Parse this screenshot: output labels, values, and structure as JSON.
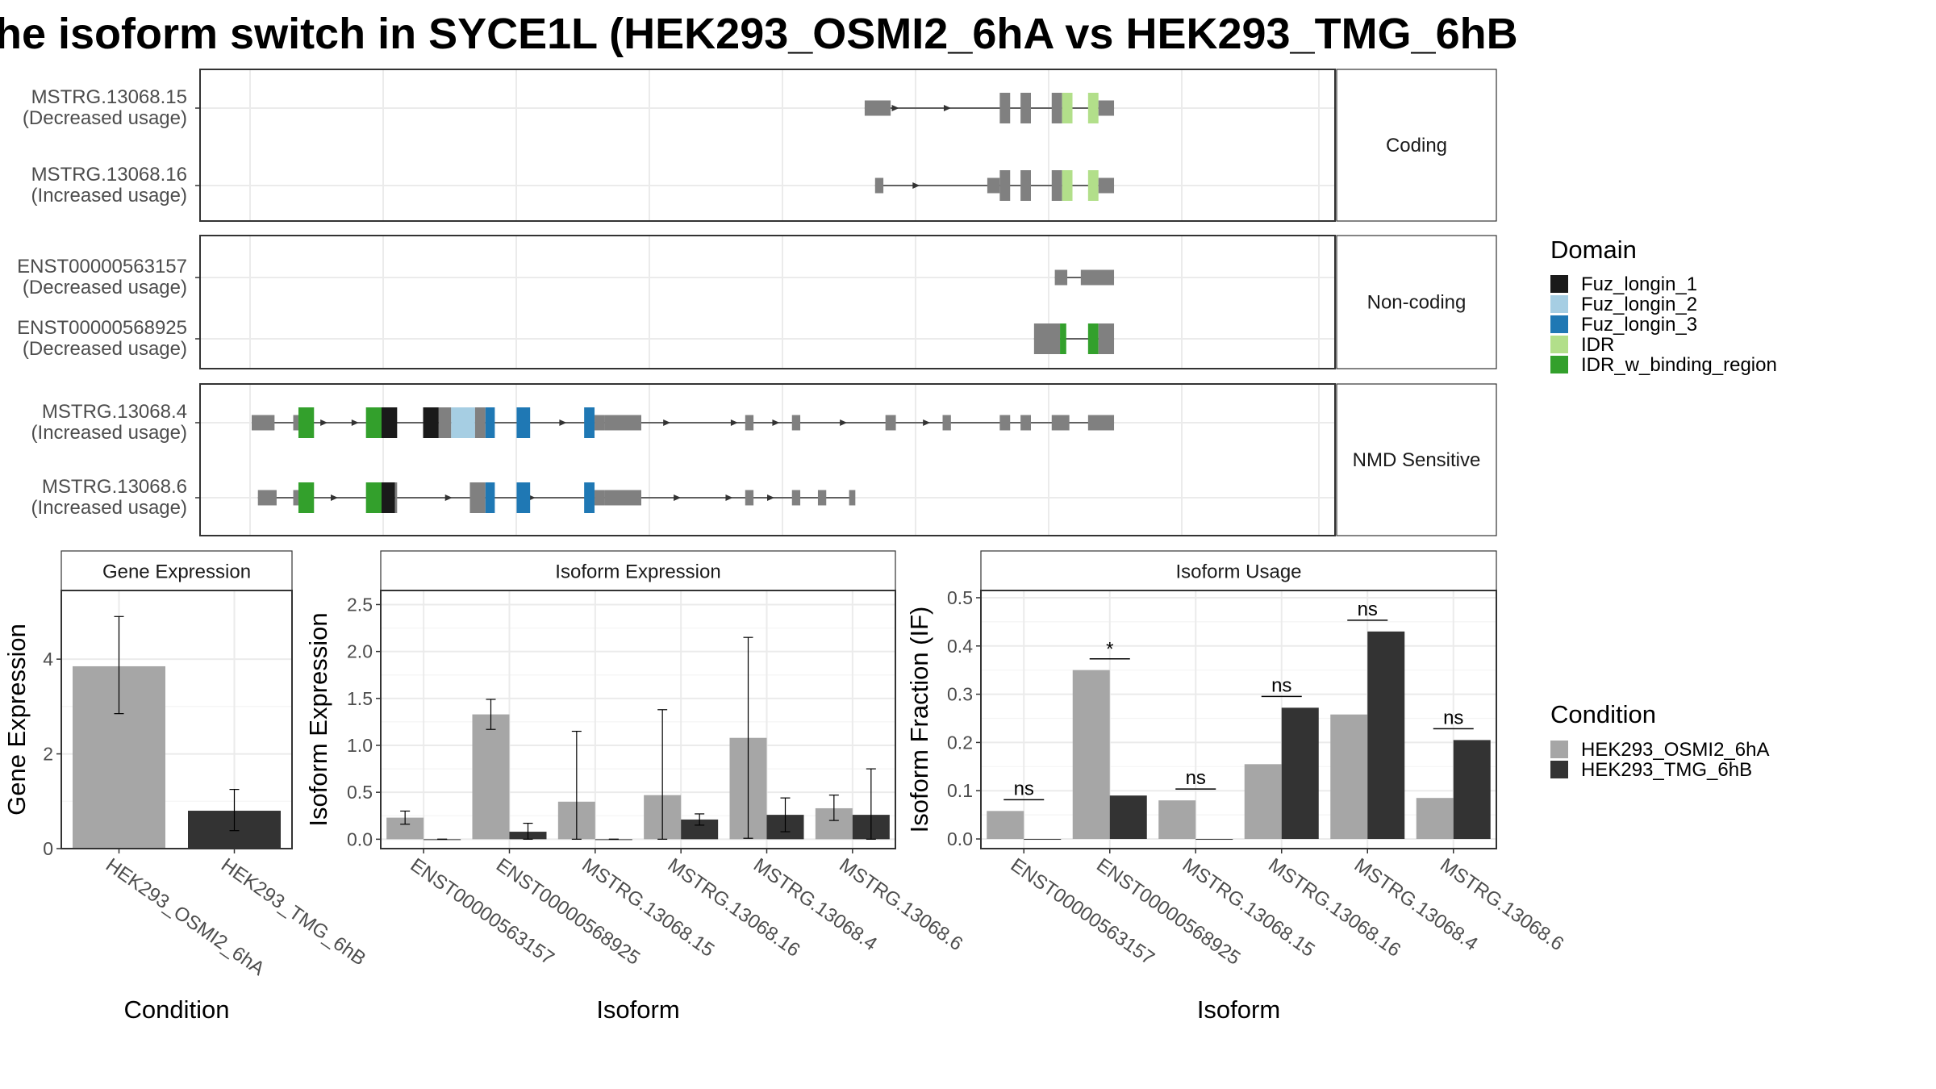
{
  "title": "he isoform switch in SYCE1L (HEK293_OSMI2_6hA vs HEK293_TMG_6hB",
  "colors": {
    "exon": "#808080",
    "Fuz_longin_1": "#1a1a1a",
    "Fuz_longin_2": "#a6cee3",
    "Fuz_longin_3": "#1f78b4",
    "IDR": "#b2df8a",
    "IDR_w_binding_region": "#33a02c",
    "cond_A": "#a6a6a6",
    "cond_B": "#333333"
  },
  "chart_data": [
    {
      "type": "gene-structure",
      "genome_range": [
        0,
        1000
      ],
      "facets": [
        {
          "label": "Coding",
          "transcripts": [
            {
              "id": "MSTRG.13068.15",
              "usage": "(Decreased usage)",
              "span": [
                590,
                830
              ],
              "arrows": [
                620,
                670
              ],
              "exons": [
                [
                  590,
                  615,
                  "n"
                ],
                [
                  720,
                  730,
                  "c"
                ],
                [
                  740,
                  750,
                  "c"
                ],
                [
                  770,
                  780,
                  "c"
                ],
                [
                  780,
                  790,
                  "c",
                  "IDR"
                ],
                [
                  805,
                  815,
                  "c",
                  "IDR"
                ],
                [
                  815,
                  830,
                  "n"
                ]
              ]
            },
            {
              "id": "MSTRG.13068.16",
              "usage": "(Increased usage)",
              "span": [
                600,
                830
              ],
              "arrows": [
                640
              ],
              "exons": [
                [
                  600,
                  608,
                  "n"
                ],
                [
                  708,
                  720,
                  "n"
                ],
                [
                  720,
                  730,
                  "c"
                ],
                [
                  740,
                  750,
                  "c"
                ],
                [
                  770,
                  780,
                  "c"
                ],
                [
                  780,
                  790,
                  "c",
                  "IDR"
                ],
                [
                  805,
                  815,
                  "c",
                  "IDR"
                ],
                [
                  815,
                  830,
                  "n"
                ]
              ]
            }
          ]
        },
        {
          "label": "Non-coding",
          "transcripts": [
            {
              "id": "ENST00000563157",
              "usage": "(Decreased usage)",
              "span": [
                773,
                830
              ],
              "arrows": [],
              "exons": [
                [
                  773,
                  785,
                  "n"
                ],
                [
                  798,
                  830,
                  "n"
                ]
              ]
            },
            {
              "id": "ENST00000568925",
              "usage": "(Decreased usage)",
              "span": [
                753,
                830
              ],
              "arrows": [],
              "exons": [
                [
                  753,
                  778,
                  "c"
                ],
                [
                  778,
                  784,
                  "c",
                  "IDR_w_binding_region"
                ],
                [
                  805,
                  815,
                  "c",
                  "IDR_w_binding_region"
                ],
                [
                  815,
                  830,
                  "c"
                ]
              ]
            }
          ]
        },
        {
          "label": "NMD Sensitive",
          "transcripts": [
            {
              "id": "MSTRG.13068.4",
              "usage": "(Increased usage)",
              "span": [
                0,
                830
              ],
              "arrows": [
                70,
                100,
                200,
                300,
                400,
                465,
                505,
                570,
                650
              ],
              "exons": [
                [
                  0,
                  22,
                  "n"
                ],
                [
                  40,
                  45,
                  "n"
                ],
                [
                  45,
                  60,
                  "c",
                  "IDR_w_binding_region"
                ],
                [
                  110,
                  125,
                  "c",
                  "IDR_w_binding_region"
                ],
                [
                  125,
                  140,
                  "c",
                  "Fuz_longin_1"
                ],
                [
                  165,
                  180,
                  "c",
                  "Fuz_longin_1"
                ],
                [
                  180,
                  192,
                  "c"
                ],
                [
                  192,
                  215,
                  "c",
                  "Fuz_longin_2"
                ],
                [
                  215,
                  225,
                  "c"
                ],
                [
                  225,
                  234,
                  "c",
                  "Fuz_longin_3"
                ],
                [
                  255,
                  268,
                  "c",
                  "Fuz_longin_3"
                ],
                [
                  320,
                  330,
                  "c",
                  "Fuz_longin_3"
                ],
                [
                  330,
                  340,
                  "n"
                ],
                [
                  340,
                  375,
                  "n"
                ],
                [
                  475,
                  483,
                  "n"
                ],
                [
                  520,
                  528,
                  "n"
                ],
                [
                  610,
                  620,
                  "n"
                ],
                [
                  665,
                  673,
                  "n"
                ],
                [
                  720,
                  730,
                  "n"
                ],
                [
                  740,
                  750,
                  "n"
                ],
                [
                  770,
                  787,
                  "n"
                ],
                [
                  805,
                  830,
                  "n"
                ]
              ]
            },
            {
              "id": "MSTRG.13068.6",
              "usage": "(Increased usage)",
              "span": [
                6,
                580
              ],
              "arrows": [
                80,
                190,
                270,
                410,
                460,
                500
              ],
              "exons": [
                [
                  6,
                  24,
                  "n"
                ],
                [
                  40,
                  45,
                  "n"
                ],
                [
                  45,
                  60,
                  "c",
                  "IDR_w_binding_region"
                ],
                [
                  110,
                  125,
                  "c",
                  "IDR_w_binding_region"
                ],
                [
                  125,
                  138,
                  "c",
                  "Fuz_longin_1"
                ],
                [
                  138,
                  140,
                  "c"
                ],
                [
                  210,
                  225,
                  "c"
                ],
                [
                  225,
                  234,
                  "c",
                  "Fuz_longin_3"
                ],
                [
                  255,
                  268,
                  "c",
                  "Fuz_longin_3"
                ],
                [
                  320,
                  330,
                  "c",
                  "Fuz_longin_3"
                ],
                [
                  330,
                  340,
                  "n"
                ],
                [
                  340,
                  375,
                  "n"
                ],
                [
                  475,
                  483,
                  "n"
                ],
                [
                  520,
                  528,
                  "n"
                ],
                [
                  545,
                  553,
                  "n"
                ],
                [
                  575,
                  581,
                  "n"
                ]
              ]
            }
          ]
        }
      ],
      "legend": {
        "title": "Domain",
        "items": [
          "Fuz_longin_1",
          "Fuz_longin_2",
          "Fuz_longin_3",
          "IDR",
          "IDR_w_binding_region"
        ]
      }
    },
    {
      "type": "bar",
      "title": "Gene Expression",
      "xlabel": "Condition",
      "ylabel": "Gene Expression",
      "ylim": [
        0,
        5.45
      ],
      "yticks": [
        0,
        2,
        4
      ],
      "categories": [
        "HEK293_OSMI2_6hA",
        "HEK293_TMG_6hB"
      ],
      "values": [
        3.85,
        0.8
      ],
      "errors": [
        [
          2.85,
          4.9
        ],
        [
          0.38,
          1.25
        ]
      ]
    },
    {
      "type": "bar",
      "title": "Isoform Expression",
      "xlabel": "Isoform",
      "ylabel": "Isoform Expression",
      "ylim": [
        -0.1,
        2.65
      ],
      "yticks": [
        0.0,
        0.5,
        1.0,
        1.5,
        2.0,
        2.5
      ],
      "categories": [
        "ENST00000563157",
        "ENST00000568925",
        "MSTRG.13068.15",
        "MSTRG.13068.16",
        "MSTRG.13068.4",
        "MSTRG.13068.6"
      ],
      "series": [
        {
          "name": "HEK293_OSMI2_6hA",
          "values": [
            0.23,
            1.33,
            0.4,
            0.47,
            1.08,
            0.33
          ],
          "errors": [
            [
              0.16,
              0.3
            ],
            [
              1.17,
              1.49
            ],
            [
              0.0,
              1.15
            ],
            [
              0.0,
              1.38
            ],
            [
              0.01,
              2.15
            ],
            [
              0.2,
              0.47
            ]
          ]
        },
        {
          "name": "HEK293_TMG_6hB",
          "values": [
            0.0,
            0.08,
            0.0,
            0.21,
            0.26,
            0.26
          ],
          "errors": [
            [
              0.0,
              0.0
            ],
            [
              0.0,
              0.17
            ],
            [
              0.0,
              0.0
            ],
            [
              0.15,
              0.27
            ],
            [
              0.08,
              0.44
            ],
            [
              0.0,
              0.75
            ]
          ]
        }
      ]
    },
    {
      "type": "bar",
      "title": "Isoform Usage",
      "xlabel": "Isoform",
      "ylabel": "Isoform Fraction (IF)",
      "ylim": [
        -0.02,
        0.515
      ],
      "yticks": [
        0.0,
        0.1,
        0.2,
        0.3,
        0.4,
        0.5
      ],
      "categories": [
        "ENST00000563157",
        "ENST00000568925",
        "MSTRG.13068.15",
        "MSTRG.13068.16",
        "MSTRG.13068.4",
        "MSTRG.13068.6"
      ],
      "series": [
        {
          "name": "HEK293_OSMI2_6hA",
          "values": [
            0.058,
            0.35,
            0.08,
            0.155,
            0.258,
            0.085
          ]
        },
        {
          "name": "HEK293_TMG_6hB",
          "values": [
            0.0,
            0.09,
            0.0,
            0.272,
            0.43,
            0.205
          ]
        }
      ],
      "significance": [
        "ns",
        "*",
        "ns",
        "ns",
        "ns",
        "ns"
      ]
    }
  ],
  "condition_legend": {
    "title": "Condition",
    "items": [
      "HEK293_OSMI2_6hA",
      "HEK293_TMG_6hB"
    ]
  }
}
